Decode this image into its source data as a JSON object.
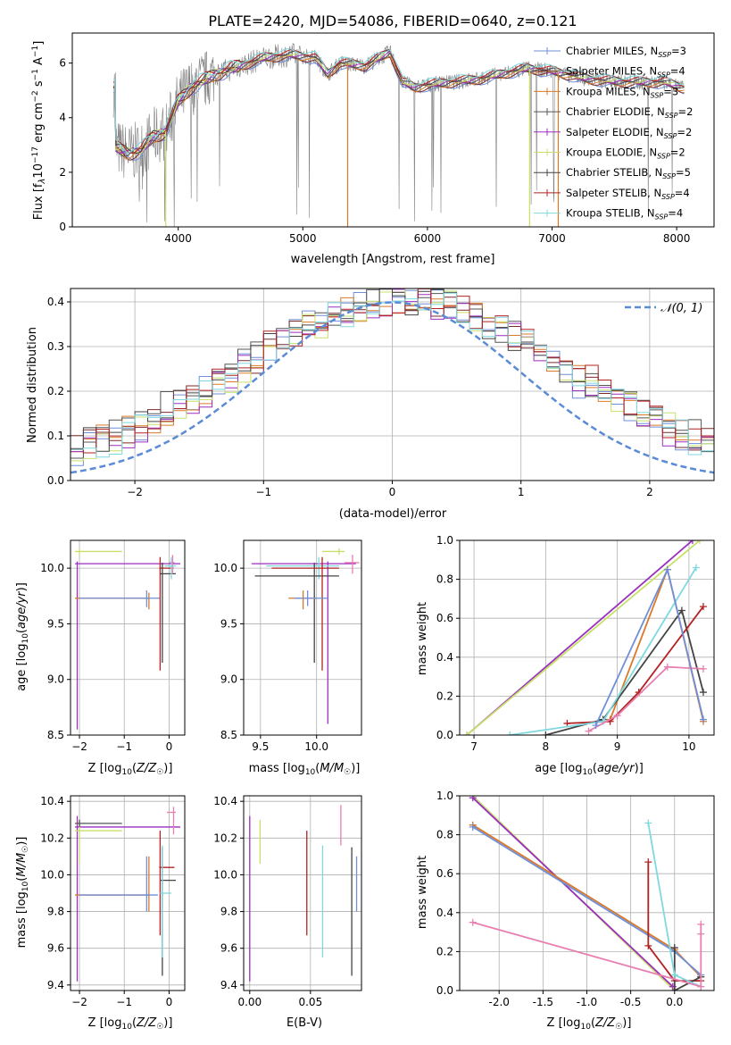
{
  "figure_title": "PLATE=2420, MJD=54086, FIBERID=0640, z=0.121",
  "colors": {
    "Chabrier MILES": "#6f8fd8",
    "Salpeter MILES": "#7a2a2a",
    "Kroupa MILES": "#d97a2a",
    "Chabrier ELODIE": "#555555",
    "Salpeter ELODIE": "#9b2fbf",
    "Kroupa ELODIE": "#c8e06a",
    "Chabrier STELIB": "#444444",
    "Salpeter STELIB": "#b22222",
    "Kroupa STELIB": "#7fd8e0",
    "pink": "#e87fb0",
    "gaussian": "#5b8bd6",
    "data": "#808080"
  },
  "chart_data": [
    {
      "id": "spectrum",
      "type": "line",
      "xlabel": "wavelength [Angstrom, rest frame]",
      "ylabel": "Flux [fλ10⁻¹⁷ erg cm⁻² s⁻¹ A⁻¹]",
      "xlim": [
        3150,
        8300
      ],
      "ylim": [
        0,
        7.1
      ],
      "xticks": [
        4000,
        5000,
        6000,
        7000,
        8000
      ],
      "yticks": [
        0,
        2,
        4,
        6
      ],
      "legend_position": "top-right",
      "legend": [
        {
          "label": "Chabrier MILES, N_SSP=3",
          "color_key": "Chabrier MILES"
        },
        {
          "label": "Salpeter MILES, N_SSP=4",
          "color_key": "Salpeter MILES"
        },
        {
          "label": "Kroupa MILES, N_SSP=3",
          "color_key": "Kroupa MILES"
        },
        {
          "label": "Chabrier ELODIE, N_SSP=2",
          "color_key": "Chabrier ELODIE"
        },
        {
          "label": "Salpeter ELODIE, N_SSP=2",
          "color_key": "Salpeter ELODIE"
        },
        {
          "label": "Kroupa ELODIE, N_SSP=2",
          "color_key": "Kroupa ELODIE"
        },
        {
          "label": "Chabrier STELIB, N_SSP=5",
          "color_key": "Chabrier STELIB"
        },
        {
          "label": "Salpeter STELIB, N_SSP=4",
          "color_key": "Salpeter STELIB"
        },
        {
          "label": "Kroupa STELIB, N_SSP=4",
          "color_key": "Kroupa STELIB"
        }
      ],
      "continuum": [
        [
          3500,
          2.9
        ],
        [
          3600,
          2.7
        ],
        [
          3700,
          2.8
        ],
        [
          3800,
          3.3
        ],
        [
          3900,
          3.5
        ],
        [
          4000,
          4.6
        ],
        [
          4100,
          5.1
        ],
        [
          4300,
          5.6
        ],
        [
          4500,
          5.9
        ],
        [
          4700,
          6.2
        ],
        [
          4900,
          6.3
        ],
        [
          5100,
          6.2
        ],
        [
          5200,
          5.6
        ],
        [
          5300,
          6.0
        ],
        [
          5500,
          5.9
        ],
        [
          5700,
          6.4
        ],
        [
          5800,
          5.3
        ],
        [
          5900,
          5.1
        ],
        [
          6000,
          5.2
        ],
        [
          6200,
          5.3
        ],
        [
          6400,
          5.4
        ],
        [
          6600,
          5.6
        ],
        [
          6800,
          5.8
        ],
        [
          7000,
          5.7
        ],
        [
          7300,
          5.4
        ],
        [
          7600,
          5.3
        ],
        [
          7900,
          5.3
        ],
        [
          8050,
          5.1
        ]
      ]
    },
    {
      "id": "residuals",
      "type": "histogram",
      "xlabel": "(data-model)/error",
      "ylabel": "Normed distribution",
      "xlim": [
        -2.5,
        2.5
      ],
      "ylim": [
        0,
        0.43
      ],
      "xticks": [
        -2,
        -1,
        0,
        1,
        2
      ],
      "yticks": [
        0.0,
        0.1,
        0.2,
        0.3,
        0.4
      ],
      "legend_position": "top-right",
      "legend": [
        {
          "label": "𝒩(0, 1)",
          "color_key": "gaussian"
        }
      ],
      "bin_width": 0.1
    },
    {
      "id": "age_vs_Z",
      "type": "scatter",
      "xlabel": "Z [log10(Z/Z⊙)]",
      "ylabel": "age  [log10(age/yr)]",
      "xlim": [
        -2.2,
        0.35
      ],
      "ylim": [
        8.5,
        10.25
      ],
      "xticks": [
        -2,
        -1,
        0
      ],
      "yticks": [
        8.5,
        9.0,
        9.5,
        10.0
      ]
    },
    {
      "id": "age_vs_mass",
      "type": "scatter",
      "xlabel": "mass [log10(M/M⊙)]",
      "ylabel": "",
      "xlim": [
        9.35,
        10.4
      ],
      "ylim": [
        8.5,
        10.25
      ],
      "xticks": [
        9.5,
        10.0
      ],
      "yticks": [
        8.5,
        9.0,
        9.5,
        10.0
      ]
    },
    {
      "id": "weight_vs_age",
      "type": "line",
      "xlabel": "age  [log10(age/yr)]",
      "ylabel": "mass weight",
      "xlim": [
        6.8,
        10.35
      ],
      "ylim": [
        0,
        1.0
      ],
      "xticks": [
        7,
        8,
        9,
        10
      ],
      "yticks": [
        0.0,
        0.2,
        0.4,
        0.6,
        0.8,
        1.0
      ]
    },
    {
      "id": "mass_vs_Z",
      "type": "scatter",
      "xlabel": "Z [log10(Z/Z⊙)]",
      "ylabel": "mass [log10(M/M⊙)]",
      "xlim": [
        -2.2,
        0.35
      ],
      "ylim": [
        9.37,
        10.43
      ],
      "xticks": [
        -2,
        -1,
        0
      ],
      "yticks": [
        9.4,
        9.6,
        9.8,
        10.0,
        10.2,
        10.4
      ]
    },
    {
      "id": "mass_vs_ebv",
      "type": "scatter",
      "xlabel": "E(B-V)",
      "ylabel": "",
      "xlim": [
        -0.005,
        0.092
      ],
      "ylim": [
        9.37,
        10.43
      ],
      "xticks": [
        0.0,
        0.05
      ],
      "yticks": [
        9.4,
        9.6,
        9.8,
        10.0,
        10.2,
        10.4
      ]
    },
    {
      "id": "weight_vs_Z",
      "type": "line",
      "xlabel": "Z [log10(Z/Z⊙)]",
      "ylabel": "mass weight",
      "xlim": [
        -2.45,
        0.45
      ],
      "ylim": [
        0,
        1.0
      ],
      "xticks": [
        -2.0,
        -1.5,
        -1.0,
        -0.5,
        0.0
      ],
      "yticks": [
        0.0,
        0.2,
        0.4,
        0.6,
        0.8,
        1.0
      ]
    }
  ],
  "age_z_errbars": [
    {
      "c": "Kroupa ELODIE",
      "x": -2.0,
      "xe": [
        -2.1,
        -1.05
      ],
      "y": 10.15,
      "ye": [
        10.12,
        10.18
      ]
    },
    {
      "c": "Salpeter ELODIE",
      "x": -2.05,
      "xe": [
        -2.1,
        0.25
      ],
      "y": 10.04,
      "ye": [
        8.55,
        10.06
      ]
    },
    {
      "c": "Kroupa MILES",
      "x": -0.45,
      "xe": [
        -2.1,
        -0.42
      ],
      "y": 9.73,
      "ye": [
        9.63,
        9.78
      ]
    },
    {
      "c": "Chabrier MILES",
      "x": -0.5,
      "xe": [
        -2.0,
        -0.2
      ],
      "y": 9.73,
      "ye": [
        9.65,
        9.8
      ]
    },
    {
      "c": "Salpeter STELIB",
      "x": -0.2,
      "xe": [
        -0.22,
        0.1
      ],
      "y": 10.0,
      "ye": [
        9.08,
        10.1
      ]
    },
    {
      "c": "Chabrier STELIB",
      "x": -0.15,
      "xe": [
        -0.2,
        0.15
      ],
      "y": 9.95,
      "ye": [
        9.15,
        10.05
      ]
    },
    {
      "c": "pink",
      "x": 0.08,
      "xe": [
        0.0,
        0.12
      ],
      "y": 10.05,
      "ye": [
        9.95,
        10.12
      ]
    },
    {
      "c": "Kroupa STELIB",
      "x": 0.05,
      "xe": [
        -0.1,
        0.15
      ],
      "y": 10.02,
      "ye": [
        9.9,
        10.1
      ]
    }
  ],
  "age_mass_errbars": [
    {
      "c": "Salpeter ELODIE",
      "x": 10.1,
      "xe": [
        9.42,
        10.35
      ],
      "y": 10.04,
      "ye": [
        8.6,
        10.06
      ]
    },
    {
      "c": "Kroupa ELODIE",
      "x": 10.2,
      "xe": [
        10.05,
        10.25
      ],
      "y": 10.15,
      "ye": [
        10.12,
        10.18
      ]
    },
    {
      "c": "Kroupa STELIB",
      "x": 10.02,
      "xe": [
        9.55,
        10.2
      ],
      "y": 10.02,
      "ye": [
        9.9,
        10.1
      ]
    },
    {
      "c": "Chabrier STELIB",
      "x": 9.98,
      "xe": [
        9.45,
        10.2
      ],
      "y": 9.93,
      "ye": [
        9.15,
        10.05
      ]
    },
    {
      "c": "Salpeter STELIB",
      "x": 10.05,
      "xe": [
        9.6,
        10.2
      ],
      "y": 10.0,
      "ye": [
        9.08,
        10.1
      ]
    },
    {
      "c": "Kroupa MILES",
      "x": 9.88,
      "xe": [
        9.75,
        10.0
      ],
      "y": 9.73,
      "ye": [
        9.63,
        9.8
      ]
    },
    {
      "c": "Chabrier MILES",
      "x": 9.92,
      "xe": [
        9.8,
        10.1
      ],
      "y": 9.73,
      "ye": [
        9.66,
        9.8
      ]
    },
    {
      "c": "pink",
      "x": 10.32,
      "xe": [
        10.25,
        10.38
      ],
      "y": 10.05,
      "ye": [
        9.95,
        10.12
      ]
    }
  ],
  "weight_age_lines": [
    {
      "c": "Salpeter ELODIE",
      "pts": [
        [
          6.9,
          0.0
        ],
        [
          10.05,
          1.0
        ]
      ]
    },
    {
      "c": "Kroupa ELODIE",
      "pts": [
        [
          6.9,
          0.0
        ],
        [
          10.15,
          1.0
        ]
      ]
    },
    {
      "c": "Kroupa MILES",
      "pts": [
        [
          8.9,
          0.08
        ],
        [
          9.7,
          0.85
        ],
        [
          10.2,
          0.07
        ]
      ]
    },
    {
      "c": "Chabrier STELIB",
      "pts": [
        [
          8.0,
          0.0
        ],
        [
          8.8,
          0.08
        ],
        [
          9.9,
          0.64
        ],
        [
          10.2,
          0.22
        ]
      ]
    },
    {
      "c": "Salpeter STELIB",
      "pts": [
        [
          8.3,
          0.06
        ],
        [
          8.9,
          0.07
        ],
        [
          9.3,
          0.22
        ],
        [
          10.2,
          0.66
        ]
      ]
    },
    {
      "c": "Kroupa STELIB",
      "pts": [
        [
          7.5,
          0.0
        ],
        [
          8.8,
          0.07
        ],
        [
          10.1,
          0.86
        ]
      ]
    },
    {
      "c": "pink",
      "pts": [
        [
          8.6,
          0.02
        ],
        [
          9.0,
          0.1
        ],
        [
          9.7,
          0.35
        ],
        [
          10.2,
          0.34
        ]
      ]
    },
    {
      "c": "Chabrier MILES",
      "pts": [
        [
          8.7,
          0.05
        ],
        [
          9.7,
          0.85
        ],
        [
          10.2,
          0.08
        ]
      ]
    }
  ],
  "mass_z_errbars": [
    {
      "c": "Salpeter ELODIE",
      "x": -2.05,
      "xe": [
        -2.1,
        0.25
      ],
      "y": 10.26,
      "ye": [
        9.42,
        10.32
      ]
    },
    {
      "c": "Kroupa ELODIE",
      "x": -2.0,
      "xe": [
        -2.1,
        -1.05
      ],
      "y": 10.24,
      "ye": [
        10.06,
        10.3
      ]
    },
    {
      "c": "Chabrier ELODIE",
      "x": -2.0,
      "xe": [
        -2.1,
        -1.05
      ],
      "y": 10.28,
      "ye": [
        10.26,
        10.3
      ]
    },
    {
      "c": "Kroupa MILES",
      "x": -0.45,
      "xe": [
        -2.1,
        -0.42
      ],
      "y": 9.89,
      "ye": [
        9.8,
        10.1
      ]
    },
    {
      "c": "Chabrier MILES",
      "x": -0.5,
      "xe": [
        -2.0,
        -0.25
      ],
      "y": 9.89,
      "ye": [
        9.8,
        10.1
      ]
    },
    {
      "c": "Chabrier STELIB",
      "x": -0.15,
      "xe": [
        -0.2,
        0.15
      ],
      "y": 9.97,
      "ye": [
        9.45,
        10.15
      ]
    },
    {
      "c": "Salpeter STELIB",
      "x": -0.2,
      "xe": [
        -0.22,
        0.12
      ],
      "y": 10.04,
      "ye": [
        9.67,
        10.24
      ]
    },
    {
      "c": "Kroupa STELIB",
      "x": -0.15,
      "xe": [
        -0.2,
        0.05
      ],
      "y": 9.9,
      "ye": [
        9.55,
        10.16
      ]
    },
    {
      "c": "pink",
      "x": 0.1,
      "xe": [
        -0.05,
        0.15
      ],
      "y": 10.34,
      "ye": [
        10.22,
        10.37
      ]
    }
  ],
  "mass_ebv_errbars": [
    {
      "c": "Salpeter ELODIE",
      "x": 0.0,
      "ye": [
        9.42,
        10.32
      ]
    },
    {
      "c": "Kroupa ELODIE",
      "x": 0.0085,
      "ye": [
        10.06,
        10.3
      ]
    },
    {
      "c": "Salpeter STELIB",
      "x": 0.047,
      "ye": [
        9.67,
        10.24
      ]
    },
    {
      "c": "Kroupa STELIB",
      "x": 0.06,
      "ye": [
        9.55,
        10.16
      ]
    },
    {
      "c": "pink",
      "x": 0.075,
      "ye": [
        10.16,
        10.38
      ]
    },
    {
      "c": "Chabrier STELIB",
      "x": 0.084,
      "ye": [
        9.45,
        10.15
      ]
    },
    {
      "c": "Chabrier MILES",
      "x": 0.088,
      "ye": [
        9.8,
        10.1
      ]
    }
  ],
  "weight_z_lines": [
    {
      "c": "Kroupa ELODIE",
      "pts": [
        [
          -2.3,
          1.0
        ],
        [
          0.0,
          0.0
        ]
      ]
    },
    {
      "c": "Salpeter ELODIE",
      "pts": [
        [
          -2.3,
          0.99
        ],
        [
          -0.02,
          0.02
        ]
      ]
    },
    {
      "c": "Kroupa MILES",
      "pts": [
        [
          -2.3,
          0.85
        ],
        [
          0.0,
          0.21
        ],
        [
          0.3,
          0.07
        ]
      ]
    },
    {
      "c": "Chabrier MILES",
      "pts": [
        [
          -2.3,
          0.84
        ],
        [
          0.0,
          0.2
        ],
        [
          0.3,
          0.08
        ]
      ]
    },
    {
      "c": "Salpeter STELIB",
      "pts": [
        [
          -0.3,
          0.66
        ],
        [
          -0.3,
          0.23
        ],
        [
          0.0,
          0.05
        ],
        [
          0.3,
          0.05
        ]
      ]
    },
    {
      "c": "Chabrier STELIB",
      "pts": [
        [
          0.0,
          0.22
        ],
        [
          0.0,
          0.0
        ],
        [
          0.3,
          0.07
        ]
      ]
    },
    {
      "c": "Kroupa STELIB",
      "pts": [
        [
          -0.3,
          0.86
        ],
        [
          0.0,
          0.08
        ],
        [
          0.3,
          0.02
        ]
      ]
    },
    {
      "c": "pink",
      "pts": [
        [
          -2.3,
          0.35
        ],
        [
          0.3,
          0.02
        ],
        [
          0.3,
          0.34
        ],
        [
          0.3,
          0.29
        ]
      ]
    }
  ]
}
